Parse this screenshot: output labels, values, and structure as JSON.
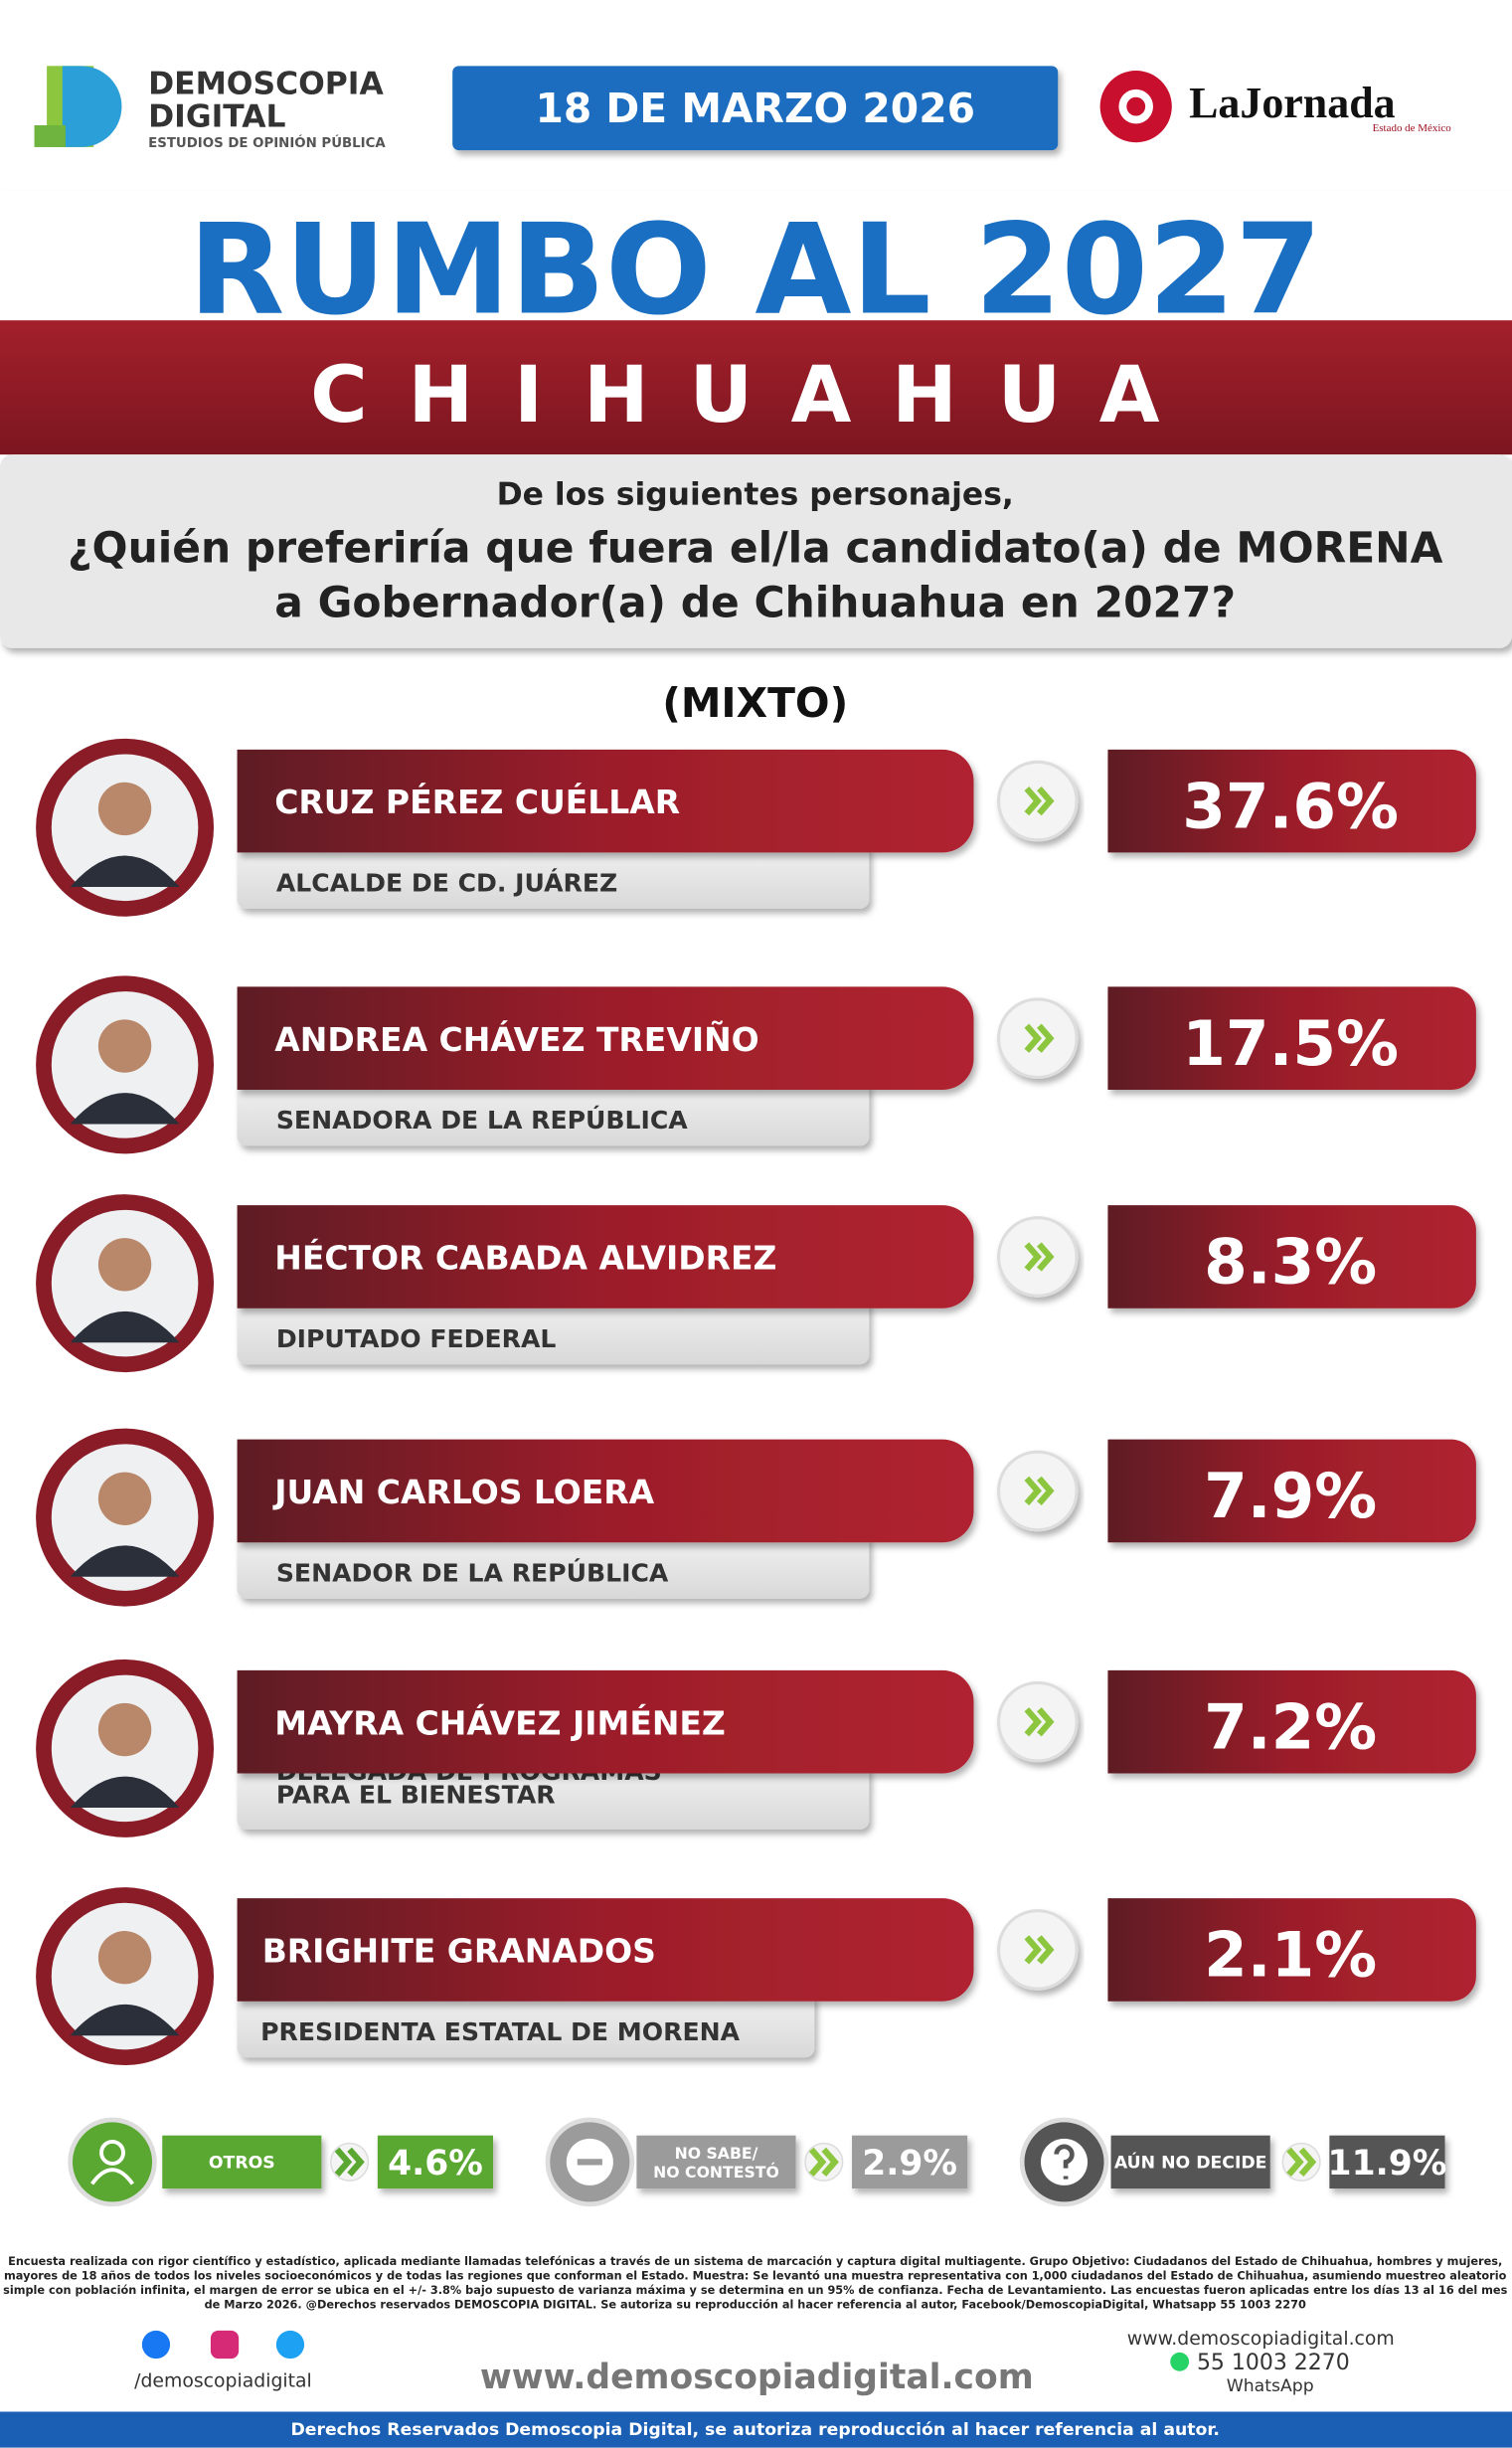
{
  "header": {
    "brand_line1": "DEMOSCOPIA",
    "brand_line2": "DIGITAL",
    "brand_tagline": "ESTUDIOS DE OPINIÓN PÚBLICA",
    "date": "18 DE MARZO 2026",
    "partner": "LaJornada",
    "partner_sub": "Estado de México"
  },
  "title": "RUMBO AL 2027",
  "state": "CHIHUAHUA",
  "question": {
    "intro": "De los siguientes personajes,",
    "line1": "¿Quién preferiría que fuera el/la candidato(a) de MORENA",
    "line2": "a Gobernador(a) de Chihuahua en 2027?"
  },
  "method": "(MIXTO)",
  "candidates": [
    {
      "name": "CRUZ PÉREZ CUÉLLAR",
      "role": [
        "ALCALDE DE CD. JUÁREZ"
      ],
      "value": "37.6%"
    },
    {
      "name": "ANDREA CHÁVEZ TREVIÑO",
      "role": [
        "SENADORA DE LA REPÚBLICA"
      ],
      "value": "17.5%"
    },
    {
      "name": "HÉCTOR CABADA ALVIDREZ",
      "role": [
        "DIPUTADO FEDERAL"
      ],
      "value": "8.3%"
    },
    {
      "name": "JUAN CARLOS LOERA",
      "role": [
        "SENADOR DE LA REPÚBLICA"
      ],
      "value": "7.9%"
    },
    {
      "name": "MAYRA CHÁVEZ JIMÉNEZ",
      "role": [
        "DELEGADA DE PROGRAMAS",
        "PARA EL BIENESTAR"
      ],
      "value": "7.2%"
    },
    {
      "name": "BRIGHITE GRANADOS",
      "role": [
        "PRESIDENTA ESTATAL DE MORENA"
      ],
      "value": "2.1%"
    }
  ],
  "others": [
    {
      "label": [
        "OTROS"
      ],
      "value": "4.6%"
    },
    {
      "label": [
        "NO SABE/",
        "NO CONTESTÓ"
      ],
      "value": "2.9%"
    },
    {
      "label": [
        "AÚN NO DECIDE"
      ],
      "value": "11.9%"
    }
  ],
  "footnote": [
    "Encuesta realizada con rigor científico y estadístico, aplicada mediante llamadas telefónicas a través de un sistema de marcación y captura digital multiagente. Grupo Objetivo: Ciudadanos del Estado de Chihuahua, hombres y mujeres,",
    "mayores de 18 años de todos los niveles socioeconómicos y de todas las regiones que conforman el Estado. Muestra: Se levantó una muestra representativa con 1,000 ciudadanos del Estado de Chihuahua, asumiendo muestreo aleatorio",
    "simple con población infinita, el margen de error se ubica en el +/- 3.8% bajo supuesto de varianza máxima y se determina en un 95% de confianza. Fecha de Levantamiento. Las encuestas fueron aplicadas entre los días 13 al 16 del mes",
    "de Marzo 2026. @Derechos reservados DEMOSCOPIA DIGITAL. Se autoriza su reproducción al hacer referencia al autor, Facebook/DemoscopiaDigital, Whatsapp 55 1003 2270"
  ],
  "footer": {
    "social": "/demoscopiadigital",
    "website": "www.demoscopiadigital.com",
    "contact_site": "www.demoscopiadigital.com",
    "phone": "55 1003 2270",
    "whatsapp": "WhatsApp",
    "rights": "Derechos Reservados Demoscopia Digital, se autoriza reproducción al hacer referencia al autor."
  }
}
